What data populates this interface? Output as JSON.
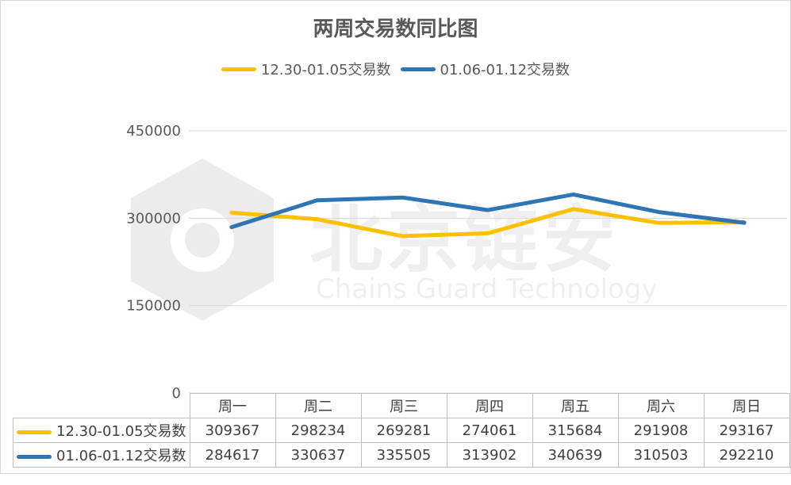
{
  "colors": {
    "series_1": "#FFC000",
    "series_2": "#2E75B6",
    "grid": "#d9d9d9",
    "text": "#595959"
  },
  "watermark": {
    "cn": "北京链安",
    "en": "Chains Guard Technology"
  },
  "chart_data": {
    "type": "line",
    "title": "两周交易数同比图",
    "categories": [
      "周一",
      "周二",
      "周三",
      "周四",
      "周五",
      "周六",
      "周日"
    ],
    "series": [
      {
        "name": "12.30-01.05交易数",
        "values": [
          309367,
          298234,
          269281,
          274061,
          315684,
          291908,
          293167
        ]
      },
      {
        "name": "01.06-01.12交易数",
        "values": [
          284617,
          330637,
          335505,
          313902,
          340639,
          310503,
          292210
        ]
      }
    ],
    "ylim": [
      0,
      450000
    ],
    "yticks": [
      "0",
      "150000",
      "300000",
      "450000"
    ],
    "grid": true,
    "legend": "top",
    "data_table": true
  }
}
